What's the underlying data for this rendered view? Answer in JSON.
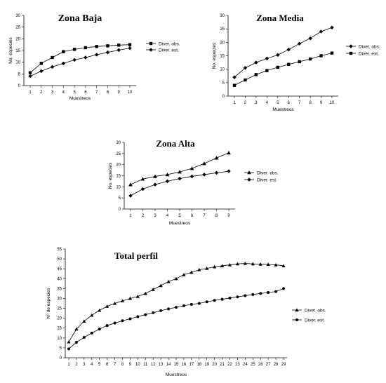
{
  "chart_data": [
    {
      "type": "line",
      "title": "Zona Baja",
      "xlabel": "Muestreos",
      "ylabel": "No. especies",
      "x": [
        1,
        2,
        3,
        4,
        5,
        6,
        7,
        8,
        9,
        10
      ],
      "ylim": [
        0,
        30
      ],
      "yticks": [
        0,
        5,
        10,
        15,
        20,
        25,
        30
      ],
      "grid": false,
      "legend_placement": "right",
      "series": [
        {
          "name": "Diver. obs.",
          "marker": "square",
          "values": [
            5.5,
            9.5,
            12,
            14.5,
            15.5,
            16.2,
            16.7,
            17,
            17.3,
            17.5
          ]
        },
        {
          "name": "Diver. est.",
          "marker": "diamond",
          "values": [
            4,
            6.2,
            8,
            9.5,
            11,
            12,
            13.2,
            14.2,
            15.2,
            16
          ]
        }
      ]
    },
    {
      "type": "line",
      "title": "Zona Media",
      "xlabel": "Muestreos",
      "ylabel": "No. especies",
      "x": [
        1,
        2,
        3,
        4,
        5,
        6,
        7,
        8,
        9,
        10
      ],
      "ylim": [
        0,
        30
      ],
      "yticks": [
        0,
        5,
        10,
        15,
        20,
        25,
        30
      ],
      "grid": false,
      "legend_placement": "right",
      "series": [
        {
          "name": "Diver. obs.",
          "marker": "diamond",
          "values": [
            7,
            10.5,
            12.5,
            14,
            15.3,
            17.3,
            19.5,
            21.5,
            24,
            25.5
          ]
        },
        {
          "name": "Diver. ext.",
          "marker": "square",
          "values": [
            4,
            6,
            8,
            9.5,
            10.7,
            11.8,
            12.8,
            13.8,
            15,
            16
          ]
        }
      ]
    },
    {
      "type": "line",
      "title": "Zona Alta",
      "xlabel": "Muestreos",
      "ylabel": "No. especies",
      "x": [
        1,
        2,
        3,
        4,
        5,
        6,
        7,
        8,
        9
      ],
      "ylim": [
        0,
        30
      ],
      "yticks": [
        0,
        5,
        10,
        15,
        20,
        25,
        30
      ],
      "grid": false,
      "legend_placement": "right",
      "series": [
        {
          "name": "Diver. obs.",
          "marker": "triangle",
          "values": [
            11,
            13.5,
            14.7,
            15.5,
            16.7,
            18.3,
            20.5,
            23,
            25.3
          ]
        },
        {
          "name": "Diver. est.",
          "marker": "diamond",
          "values": [
            6,
            9,
            11,
            12.5,
            13.7,
            14.7,
            15.5,
            16.3,
            17
          ]
        }
      ]
    },
    {
      "type": "line",
      "title": "Total perfil",
      "xlabel": "Muestreos",
      "ylabel": "Nº de especies",
      "x": [
        1,
        2,
        3,
        4,
        5,
        6,
        7,
        8,
        9,
        10,
        11,
        12,
        13,
        14,
        15,
        16,
        17,
        18,
        19,
        20,
        21,
        22,
        23,
        24,
        25,
        26,
        27,
        28,
        29
      ],
      "ylim": [
        0,
        55
      ],
      "yticks": [
        0,
        5,
        10,
        15,
        20,
        25,
        30,
        35,
        40,
        45,
        50,
        55
      ],
      "grid": false,
      "legend_placement": "right",
      "series": [
        {
          "name": "Diver. obs.",
          "marker": "triangle",
          "values": [
            8,
            14.5,
            18.5,
            21.5,
            24,
            26,
            27.5,
            28.8,
            30,
            31,
            32.5,
            34.5,
            36.5,
            38.5,
            40,
            42,
            43.2,
            44.5,
            45.2,
            46,
            46.5,
            47,
            47.5,
            47.7,
            47.5,
            47.3,
            47.2,
            47,
            46.5
          ]
        },
        {
          "name": "Diver. ext.",
          "marker": "circle",
          "values": [
            4.5,
            7.8,
            10.3,
            12.5,
            14.5,
            16.3,
            17.5,
            18.7,
            19.7,
            20.8,
            21.8,
            22.8,
            23.8,
            24.7,
            25.5,
            26.3,
            27,
            27.5,
            28.3,
            29,
            29.6,
            30.2,
            30.8,
            31.4,
            32,
            32.5,
            33,
            33.5,
            35
          ]
        }
      ]
    }
  ]
}
